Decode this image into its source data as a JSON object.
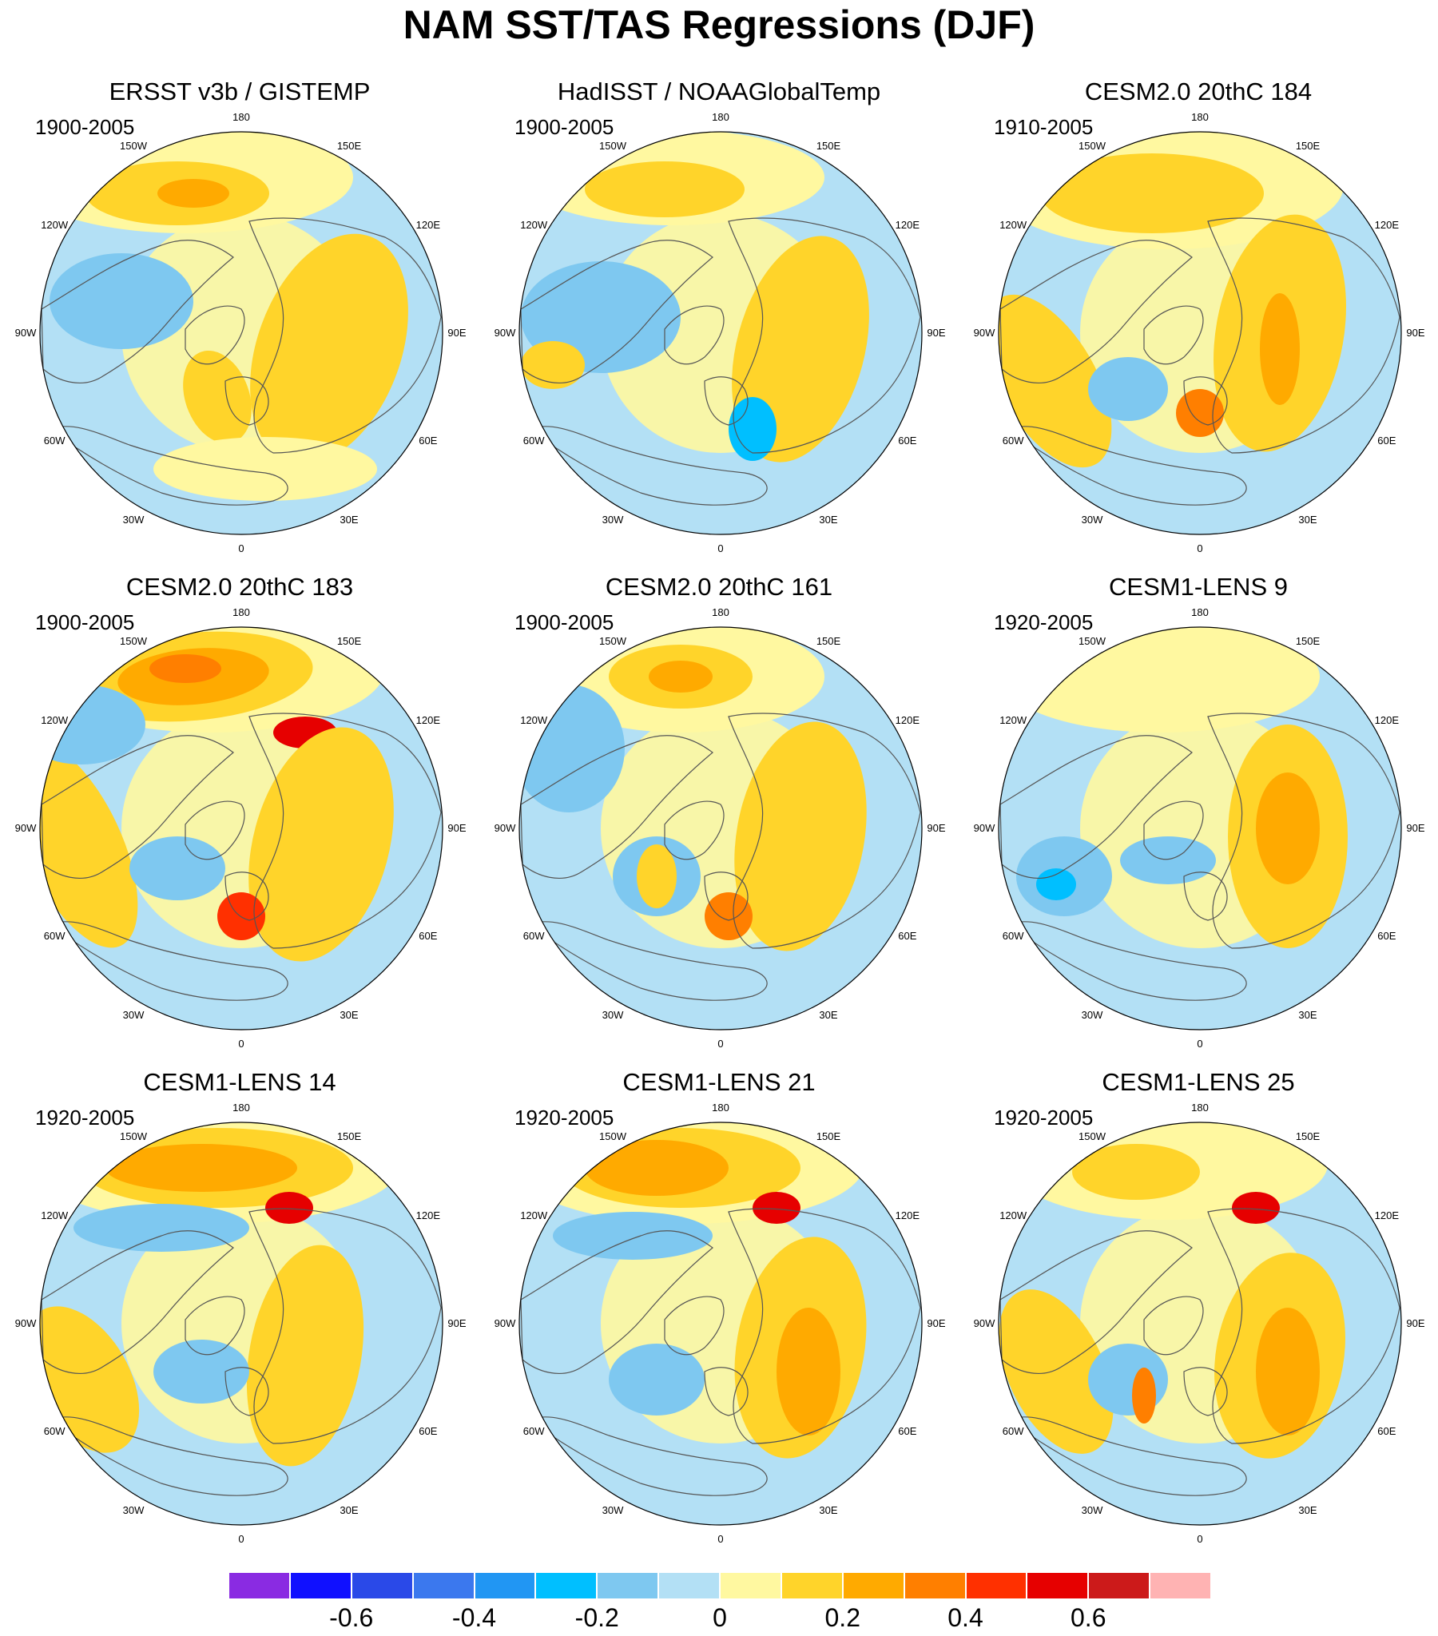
{
  "title": "NAM SST/TAS Regressions (DJF)",
  "lon_labels": [
    "180",
    "150E",
    "120E",
    "90E",
    "60E",
    "30E",
    "0",
    "30W",
    "60W",
    "90W",
    "120W",
    "150W"
  ],
  "panels": [
    {
      "title": "ERSST v3b / GISTEMP",
      "period": "1900-2005"
    },
    {
      "title": "HadISST / NOAAGlobalTemp",
      "period": "1900-2005"
    },
    {
      "title": "CESM2.0 20thC 184",
      "period": "1910-2005"
    },
    {
      "title": "CESM2.0 20thC 183",
      "period": "1900-2005"
    },
    {
      "title": "CESM2.0 20thC 161",
      "period": "1900-2005"
    },
    {
      "title": "CESM1-LENS 9",
      "period": "1920-2005"
    },
    {
      "title": "CESM1-LENS 14",
      "period": "1920-2005"
    },
    {
      "title": "CESM1-LENS 21",
      "period": "1920-2005"
    },
    {
      "title": "CESM1-LENS 25",
      "period": "1920-2005"
    }
  ],
  "colorbar": {
    "colors": [
      "#8a2be2",
      "#1010ff",
      "#2a49e8",
      "#3b78ee",
      "#2196f3",
      "#00bfff",
      "#7ec8f0",
      "#b3e0f5",
      "#fff8a0",
      "#ffd42a",
      "#ffaa00",
      "#ff7f00",
      "#ff3000",
      "#e60000",
      "#cc1a1a",
      "#ffb3b3"
    ],
    "labels": [
      "-0.6",
      "-0.4",
      "-0.2",
      "0",
      "0.2",
      "0.4",
      "0.6"
    ]
  }
}
